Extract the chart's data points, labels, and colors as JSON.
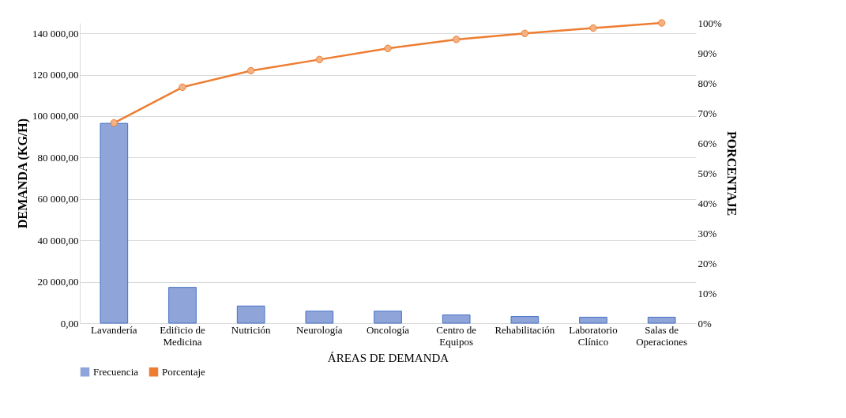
{
  "chart_data": {
    "type": "bar",
    "xlabel": "ÁREAS DE DEMANDA",
    "ylabel": "DEMANDA (KG/H)",
    "y2label": "PORCENTAJE",
    "categories": [
      "Lavandería",
      "Edificio de Medicina",
      "Nutrición",
      "Neurología",
      "Oncología",
      "Centro de Equipos",
      "Rehabilitación",
      "Laboratorio Clínico",
      "Salas de Operaciones"
    ],
    "series": [
      {
        "name": "Frecuencia",
        "color": "#8fa4d9",
        "values": [
          96500,
          17300,
          8300,
          5800,
          5800,
          4000,
          3200,
          2900,
          2900
        ]
      },
      {
        "name": "Porcentaje",
        "type": "line",
        "axis": "y2",
        "color": "#ed7d31",
        "marker": "circle",
        "values": [
          66.7,
          78.6,
          84.1,
          87.8,
          91.5,
          94.5,
          96.5,
          98.3,
          100
        ]
      }
    ],
    "ylim": [
      0,
      145000
    ],
    "yticks": [
      {
        "value": 0,
        "label": "0,00"
      },
      {
        "value": 20000,
        "label": "20 000,00"
      },
      {
        "value": 40000,
        "label": "40 000,00"
      },
      {
        "value": 60000,
        "label": "60 000,00"
      },
      {
        "value": 80000,
        "label": "80 000,00"
      },
      {
        "value": 100000,
        "label": "100 000,00"
      },
      {
        "value": 120000,
        "label": "120 000,00"
      },
      {
        "value": 140000,
        "label": "140 000,00"
      }
    ],
    "y2lim": [
      0,
      100
    ],
    "y2ticks": [
      {
        "value": 0,
        "label": "0%"
      },
      {
        "value": 10,
        "label": "10%"
      },
      {
        "value": 20,
        "label": "20%"
      },
      {
        "value": 30,
        "label": "30%"
      },
      {
        "value": 40,
        "label": "40%"
      },
      {
        "value": 50,
        "label": "50%"
      },
      {
        "value": 60,
        "label": "60%"
      },
      {
        "value": 70,
        "label": "70%"
      },
      {
        "value": 80,
        "label": "80%"
      },
      {
        "value": 90,
        "label": "90%"
      },
      {
        "value": 100,
        "label": "100%"
      }
    ],
    "grid": "y",
    "legend": "bottom"
  }
}
